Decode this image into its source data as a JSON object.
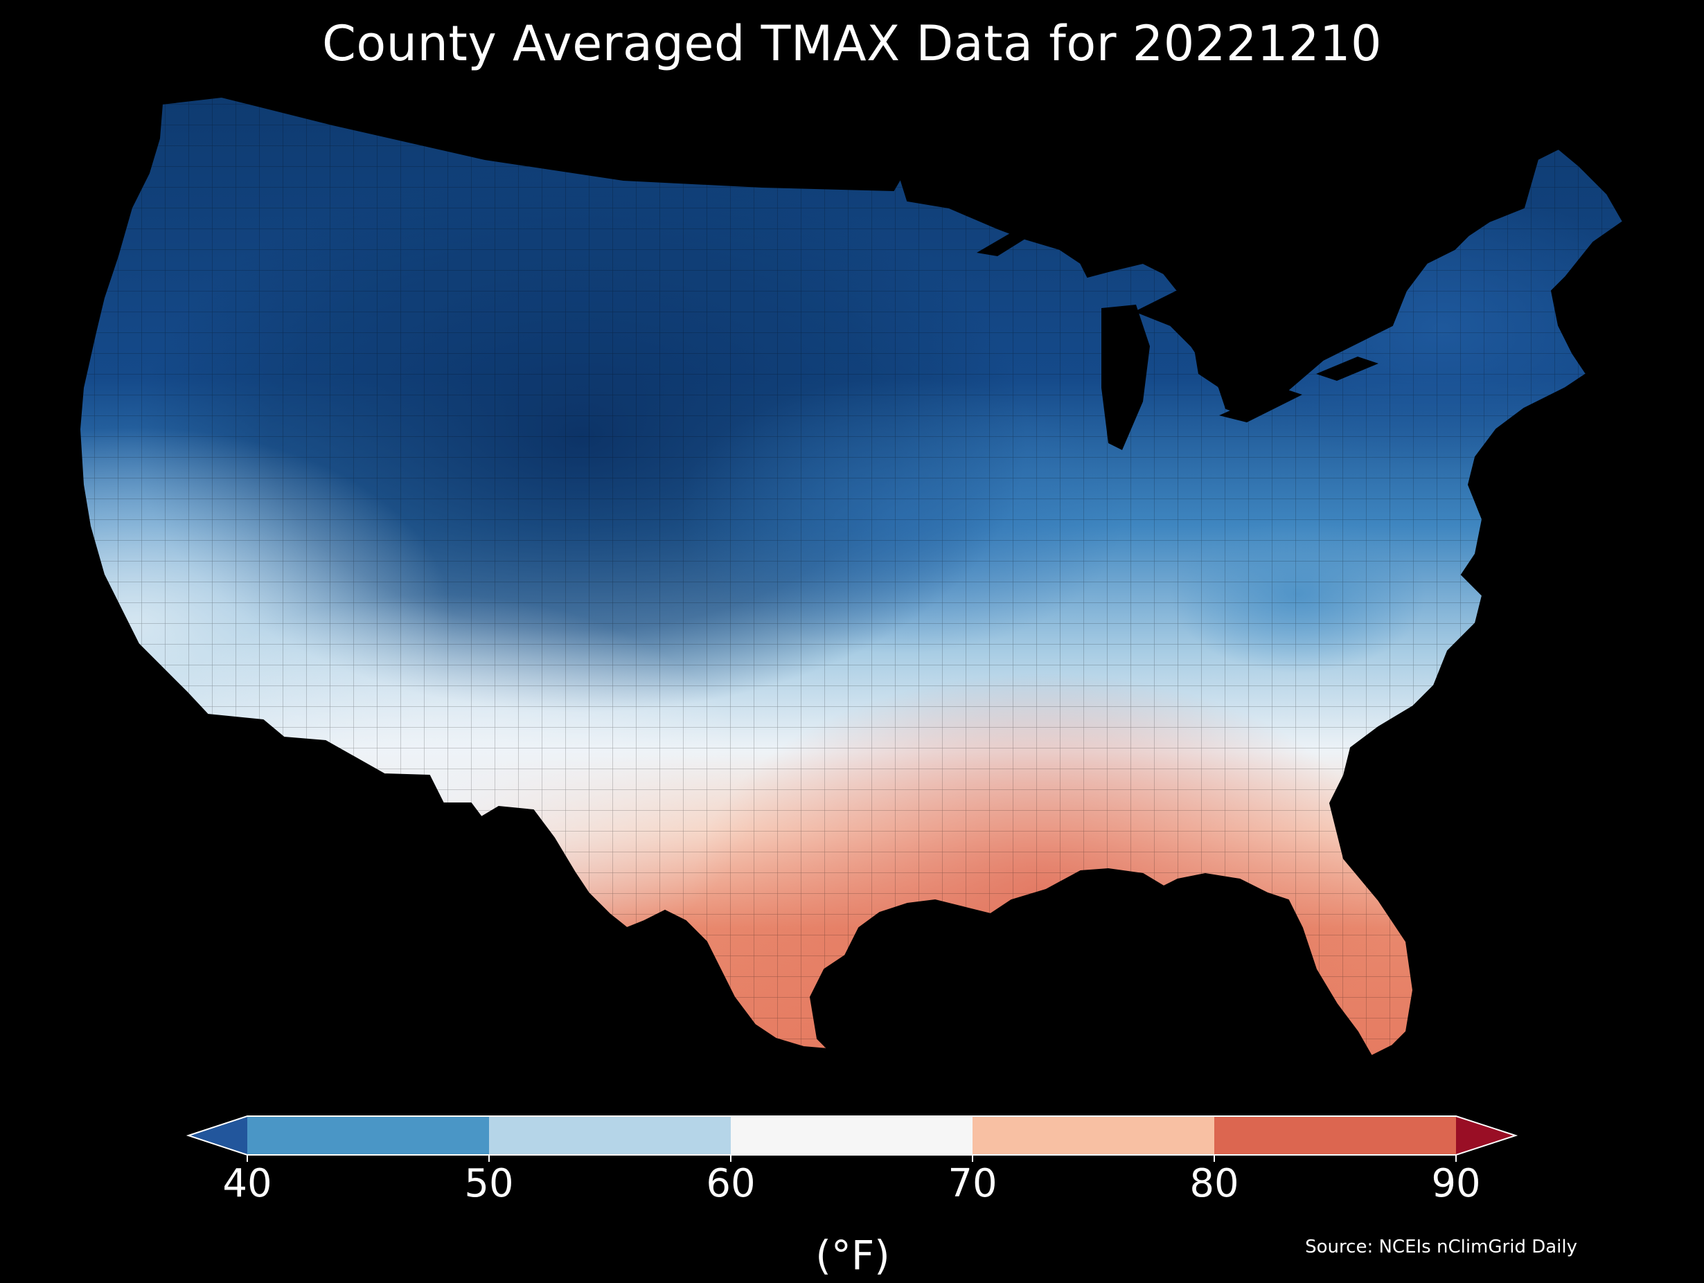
{
  "title": "County Averaged TMAX Data for 20221210",
  "colorbar": {
    "unit_label": "(°F)",
    "ticks": [
      "40",
      "50",
      "60",
      "70",
      "80",
      "90"
    ],
    "bins": [
      {
        "from": 40,
        "to": 50,
        "color": "#4a96c6"
      },
      {
        "from": 50,
        "to": 60,
        "color": "#b5d5e8"
      },
      {
        "from": 60,
        "to": 70,
        "color": "#f6f6f6"
      },
      {
        "from": 70,
        "to": 80,
        "color": "#f8c0a3"
      },
      {
        "from": 80,
        "to": 90,
        "color": "#dc6650"
      }
    ],
    "under_color": "#22569c",
    "over_color": "#990e25",
    "min": 40,
    "max": 90
  },
  "source": "Source: NCEIs nClimGrid Daily",
  "map": {
    "region": "contiguous-united-states",
    "variable": "TMAX",
    "regional_colors": {
      "northwest_coast": "#3f86c0",
      "northern_rockies": "#0e3a6f",
      "northern_plains": "#114887",
      "great_lakes": "#1a5596",
      "northeast": "#2e72b4",
      "central_plains": "#84b6da",
      "mid_atlantic": "#6ba8d4",
      "ohio_valley": "#dbe9f3",
      "southwest": "#e6eff6",
      "texas": "#f2a98b",
      "gulf_coast": "#e57f65",
      "florida": "#e88469"
    }
  }
}
